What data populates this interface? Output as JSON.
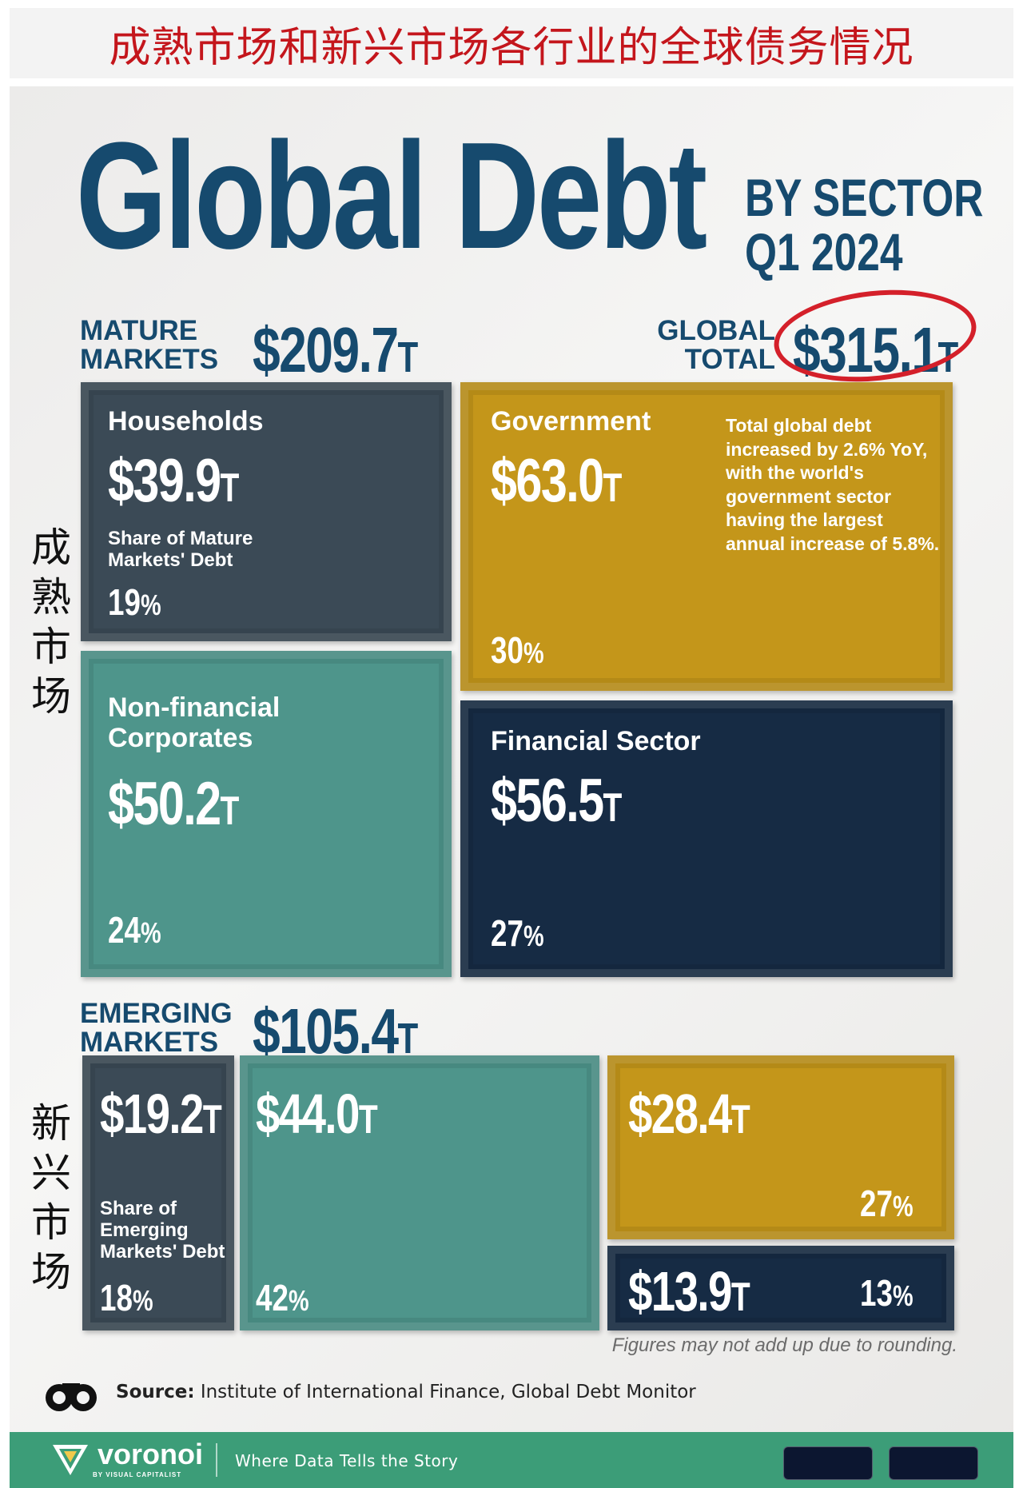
{
  "banner": {
    "text": "成熟市场和新兴市场各行业的全球债务情况"
  },
  "title": {
    "main": "Global Debt",
    "line1": "BY SECTOR",
    "line2": "Q1 2024"
  },
  "mature": {
    "label_line1": "MATURE",
    "label_line2": "MARKETS",
    "value": "$209.7",
    "unit": "T",
    "cn": "成\n熟\n市\n场"
  },
  "global": {
    "label_line1": "GLOBAL",
    "label_line2": "TOTAL",
    "value": "$315.1",
    "unit": "T"
  },
  "emerging": {
    "label_line1": "EMERGING",
    "label_line2": "MARKETS",
    "value": "$105.4",
    "unit": "T",
    "cn": "新\n兴\n市\n场"
  },
  "tiles": {
    "households": {
      "name": "Households",
      "value": "$39.9",
      "unit": "T",
      "share_line1": "Share of Mature",
      "share_line2": "Markets' Debt",
      "pct": "19",
      "pc": "%"
    },
    "government": {
      "name": "Government",
      "value": "$63.0",
      "unit": "T",
      "pct": "30",
      "pc": "%",
      "note": "Total global debt increased by 2.6% YoY, with the world's government sector having the largest annual increase of 5.8%."
    },
    "nonfin": {
      "name_line1": "Non-financial",
      "name_line2": "Corporates",
      "value": "$50.2",
      "unit": "T",
      "pct": "24",
      "pc": "%"
    },
    "financial": {
      "name": "Financial Sector",
      "value": "$56.5",
      "unit": "T",
      "pct": "27",
      "pc": "%"
    },
    "em_households": {
      "value": "$19.2",
      "unit": "T",
      "share_line1": "Share of",
      "share_line2": "Emerging",
      "share_line3": "Markets' Debt",
      "pct": "18",
      "pc": "%"
    },
    "em_nonfin": {
      "value": "$44.0",
      "unit": "T",
      "pct": "42",
      "pc": "%"
    },
    "em_government": {
      "value": "$28.4",
      "unit": "T",
      "pct": "27",
      "pc": "%"
    },
    "em_financial": {
      "value": "$13.9",
      "unit": "T",
      "pct": "13",
      "pc": "%"
    }
  },
  "footnote": "Figures may not add up due to rounding.",
  "source": {
    "label": "Source:",
    "text": " Institute of International Finance, Global Debt Monitor"
  },
  "footer": {
    "brand": "voronoi",
    "brand_sub": "BY VISUAL CAPITALIST",
    "tagline": "Where Data Tells the Story"
  },
  "colors": {
    "slate": "#3b4a56",
    "gold": "#c4961a",
    "teal": "#4e958b",
    "navy": "#162b44",
    "title": "#164a6e",
    "accent_red": "#d4202a"
  },
  "chart_data": {
    "type": "treemap",
    "title": "Global Debt BY SECTOR Q1 2024",
    "unit": "T",
    "total": 315.1,
    "groups": [
      {
        "name": "MATURE MARKETS",
        "total": 209.7,
        "sectors": [
          {
            "name": "Households",
            "value": 39.9,
            "share": 19
          },
          {
            "name": "Government",
            "value": 63.0,
            "share": 30
          },
          {
            "name": "Non-financial Corporates",
            "value": 50.2,
            "share": 24
          },
          {
            "name": "Financial Sector",
            "value": 56.5,
            "share": 27
          }
        ]
      },
      {
        "name": "EMERGING MARKETS",
        "total": 105.4,
        "sectors": [
          {
            "value": 19.2,
            "share": 18
          },
          {
            "value": 44.0,
            "share": 42
          },
          {
            "value": 28.4,
            "share": 27
          },
          {
            "value": 13.9,
            "share": 13
          }
        ]
      }
    ]
  }
}
